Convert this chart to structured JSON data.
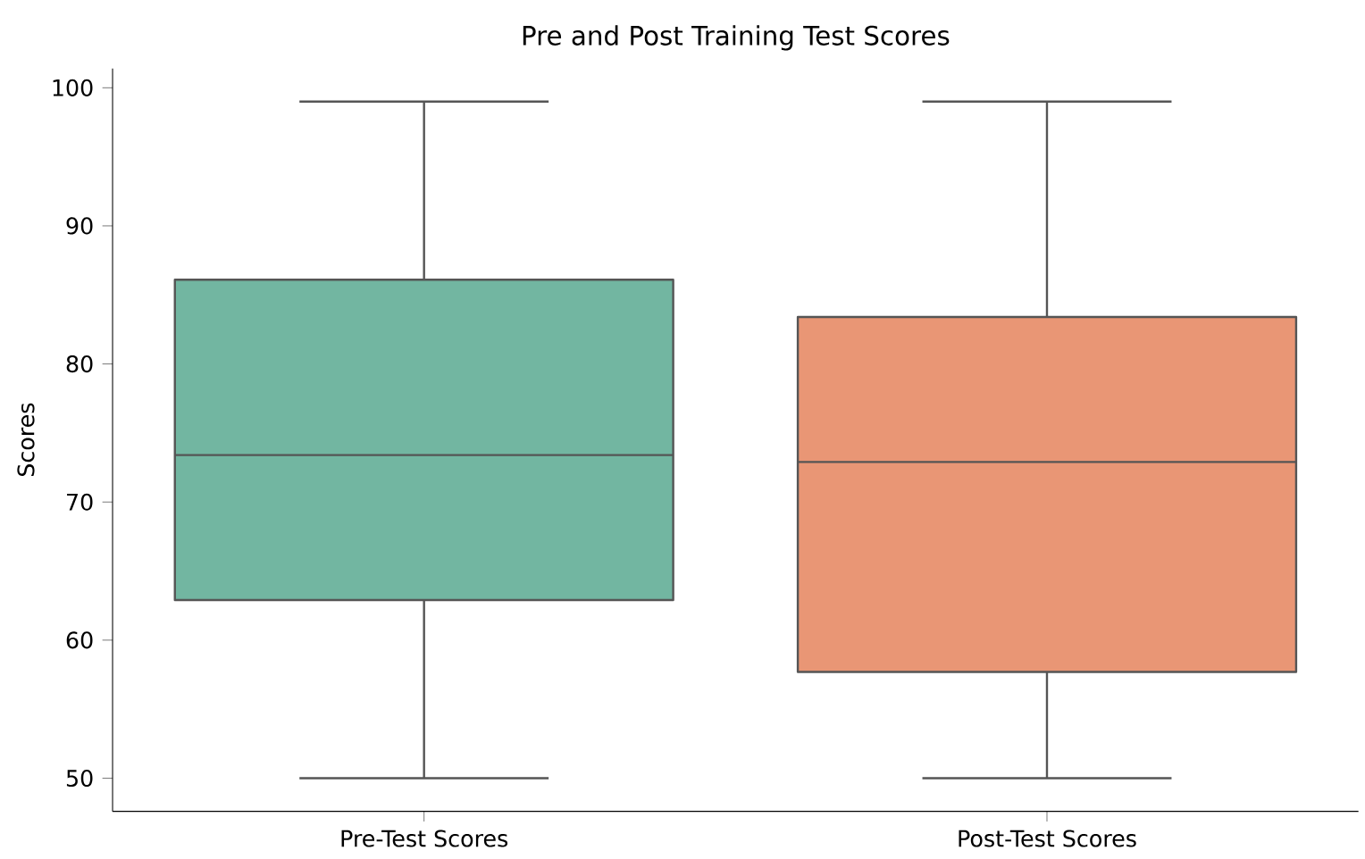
{
  "chart_data": {
    "type": "box",
    "title": "Pre and Post Training Test Scores",
    "ylabel": "Scores",
    "categories": [
      "Pre-Test Scores",
      "Post-Test Scores"
    ],
    "colors": [
      "#72b6a1",
      "#e99675"
    ],
    "boxes": [
      {
        "low": 50,
        "q1": 62.9,
        "median": 73.4,
        "q3": 86.1,
        "high": 99
      },
      {
        "low": 50,
        "q1": 57.7,
        "median": 72.9,
        "q3": 83.4,
        "high": 99
      }
    ],
    "ylim": [
      47.6,
      101.4
    ],
    "yticks": [
      50,
      60,
      70,
      80,
      90,
      100
    ],
    "grid": false
  }
}
